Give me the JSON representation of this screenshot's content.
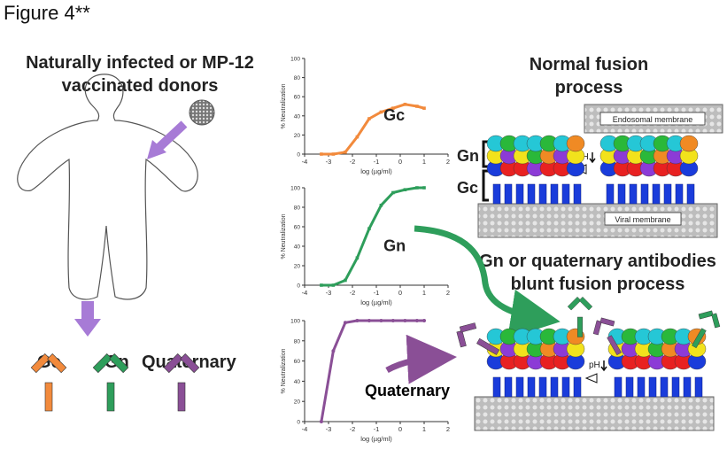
{
  "figure_title": "Figure 4**",
  "donor_text": "Naturally infected or MP-12 vaccinated donors",
  "antibodies": {
    "gc": {
      "label": "Gc",
      "color": "#f28a3c"
    },
    "gn": {
      "label": "Gn",
      "color": "#2e9e5b"
    },
    "quaternary": {
      "label": "Quaternary",
      "color": "#8a4f96"
    }
  },
  "normal_fusion": {
    "title": "Normal fusion process",
    "endosomal_membrane": "Endosomal membrane",
    "viral_membrane": "Viral membrane",
    "gn_bracket": "Gn",
    "gc_bracket": "Gc",
    "ph_label": "pH"
  },
  "blunt_fusion": {
    "title": "Gn or quaternary antibodies blunt fusion process",
    "ph_label": "pH"
  },
  "chart_data": [
    {
      "type": "line",
      "label": "Gc",
      "color": "#f28a3c",
      "xlabel": "log (µg/ml)",
      "ylabel": "% Neutralization",
      "xlim": [
        -4,
        2
      ],
      "ylim": [
        0,
        100
      ],
      "xticks": [
        "-4",
        "-3",
        "-2",
        "-1",
        "0",
        "1",
        "2"
      ],
      "yticks": [
        "0",
        "20",
        "40",
        "60",
        "80",
        "100"
      ],
      "points": [
        [
          -3.3,
          0
        ],
        [
          -2.8,
          0
        ],
        [
          -2.3,
          2
        ],
        [
          -1.8,
          18
        ],
        [
          -1.3,
          37
        ],
        [
          -0.8,
          44
        ],
        [
          -0.3,
          48
        ],
        [
          0.2,
          52
        ],
        [
          0.7,
          50
        ],
        [
          1.0,
          48
        ]
      ]
    },
    {
      "type": "line",
      "label": "Gn",
      "color": "#2e9e5b",
      "xlabel": "log (µg/ml)",
      "ylabel": "% Neutralization",
      "xlim": [
        -4,
        2
      ],
      "ylim": [
        0,
        100
      ],
      "xticks": [
        "-4",
        "-3",
        "-2",
        "-1",
        "0",
        "1",
        "2"
      ],
      "yticks": [
        "0",
        "20",
        "40",
        "60",
        "80",
        "100"
      ],
      "points": [
        [
          -3.3,
          0
        ],
        [
          -2.8,
          0
        ],
        [
          -2.3,
          5
        ],
        [
          -1.8,
          28
        ],
        [
          -1.3,
          58
        ],
        [
          -0.8,
          82
        ],
        [
          -0.3,
          95
        ],
        [
          0.2,
          98
        ],
        [
          0.7,
          100
        ],
        [
          1.0,
          100
        ]
      ]
    },
    {
      "type": "line",
      "label": "Quaternary",
      "color": "#8a4f96",
      "xlabel": "log (µg/ml)",
      "ylabel": "% Neutralization",
      "xlim": [
        -4,
        2
      ],
      "ylim": [
        0,
        100
      ],
      "xticks": [
        "-4",
        "-3",
        "-2",
        "-1",
        "0",
        "1",
        "2"
      ],
      "yticks": [
        "0",
        "20",
        "40",
        "60",
        "80",
        "100"
      ],
      "points": [
        [
          -3.3,
          0
        ],
        [
          -2.8,
          70
        ],
        [
          -2.3,
          98
        ],
        [
          -1.8,
          100
        ],
        [
          -1.3,
          100
        ],
        [
          -0.8,
          100
        ],
        [
          -0.3,
          100
        ],
        [
          0.2,
          100
        ],
        [
          0.7,
          100
        ],
        [
          1.0,
          100
        ]
      ]
    }
  ]
}
